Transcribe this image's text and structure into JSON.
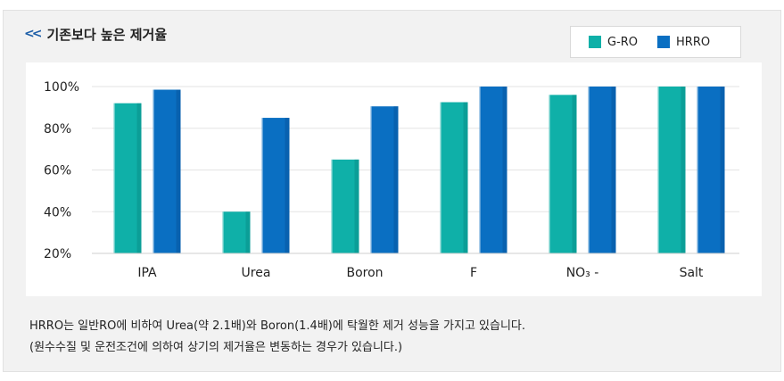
{
  "header": {
    "title": "기존보다 높은 제거율",
    "chevron": "<<"
  },
  "legend": [
    {
      "label": "G-RO",
      "color": "#0fb0a8"
    },
    {
      "label": "HRRO",
      "color": "#0a6fc2"
    }
  ],
  "chart_data": {
    "type": "bar",
    "categories": [
      "IPA",
      "Urea",
      "Boron",
      "F",
      "NO₃ -",
      "Salt"
    ],
    "series": [
      {
        "name": "G-RO",
        "values": [
          92,
          40,
          65,
          92.5,
          96,
          100
        ],
        "color": "#0fb0a8"
      },
      {
        "name": "HRRO",
        "values": [
          98.5,
          85,
          90.5,
          100,
          100,
          100
        ],
        "color": "#0a6fc2"
      }
    ],
    "ylim": [
      20,
      100
    ],
    "yticks": [
      "100%",
      "80%",
      "60%",
      "40%",
      "20%"
    ],
    "ytick_values": [
      100,
      80,
      60,
      40,
      20
    ],
    "legend_position": "top-right",
    "grid": true
  },
  "notes": [
    "HRRO는 일반RO에 비하여 Urea(약 2.1배)와 Boron(1.4배)에 탁월한 제거 성능을 가지고 있습니다.",
    "(원수수질 및 운전조건에 의하여 상기의 제거율은 변동하는 경우가 있습니다.)"
  ]
}
